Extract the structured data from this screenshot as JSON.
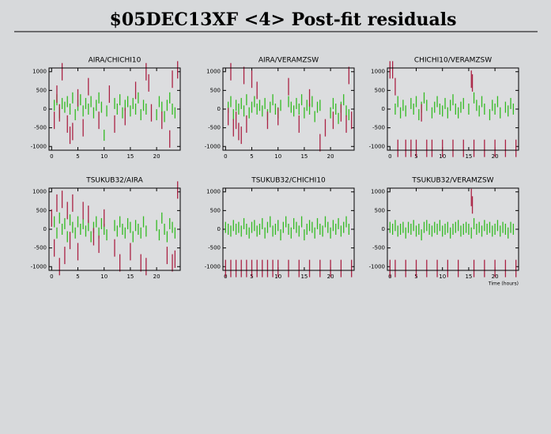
{
  "title": "$05DEC13XF <4> Post-fit residuals",
  "chart_data": [
    {
      "type": "scatter",
      "title": "AIRA/CHICHI10",
      "xlim": [
        -0.5,
        24.5
      ],
      "ylim": [
        -1100,
        1100
      ],
      "xticks": [
        0,
        5,
        10,
        15,
        20
      ],
      "yticks": [
        -1000,
        -500,
        0,
        500,
        1000
      ],
      "series": [
        {
          "color": "#33bb22",
          "x": [
            0.5,
            1,
            1.5,
            2,
            2.5,
            3,
            3.5,
            4,
            4.5,
            5,
            5.5,
            6,
            6.5,
            7,
            7.5,
            8,
            8.5,
            9,
            9.5,
            10,
            10.5,
            12,
            12.5,
            13,
            13.5,
            14,
            14.5,
            15,
            15.5,
            16,
            16.5,
            17,
            17.5,
            18,
            20,
            20.5,
            21,
            21.5,
            22,
            22.5,
            23,
            23.5
          ],
          "values": [
            100,
            250,
            -100,
            150,
            50,
            200,
            0,
            300,
            -150,
            100,
            250,
            -50,
            150,
            0,
            200,
            -100,
            100,
            300,
            50,
            -700,
            -50,
            150,
            0,
            250,
            -100,
            100,
            200,
            -50,
            150,
            0,
            300,
            -150,
            100,
            0,
            -150,
            200,
            50,
            -200,
            100,
            300,
            0,
            -100
          ]
        },
        {
          "color": "#aa2244",
          "x": [
            0.5,
            1,
            1.5,
            2,
            3,
            3.5,
            4,
            5,
            6,
            7,
            9,
            11,
            12,
            14,
            16,
            18,
            18.5,
            19,
            21,
            22.5,
            23,
            24
          ],
          "values": [
            -300,
            400,
            -100,
            1000,
            -400,
            -700,
            -600,
            300,
            -500,
            600,
            -300,
            400,
            -400,
            -200,
            500,
            1000,
            700,
            -100,
            -300,
            -800,
            800,
            1050
          ]
        }
      ]
    },
    {
      "type": "scatter",
      "title": "AIRA/VERAMZSW",
      "xlim": [
        -0.5,
        24.5
      ],
      "ylim": [
        -1100,
        1100
      ],
      "xticks": [
        0,
        5,
        10,
        15,
        20
      ],
      "yticks": [
        -1000,
        -500,
        0,
        500,
        1000
      ],
      "series": [
        {
          "color": "#33bb22",
          "x": [
            0.5,
            1,
            1.5,
            2,
            2.5,
            3,
            3.5,
            4,
            4.5,
            5,
            5.5,
            6,
            6.5,
            7,
            7.5,
            8,
            8.5,
            9,
            9.5,
            10,
            10.5,
            12,
            12.5,
            13,
            13.5,
            14,
            14.5,
            15,
            15.5,
            16,
            16.5,
            17,
            17.5,
            18,
            20,
            20.5,
            21,
            21.5,
            22,
            22.5,
            23,
            23.5
          ],
          "values": [
            50,
            200,
            -150,
            100,
            0,
            150,
            -50,
            250,
            -100,
            50,
            200,
            0,
            100,
            -50,
            150,
            -150,
            50,
            250,
            0,
            -100,
            100,
            200,
            50,
            -50,
            150,
            0,
            250,
            -100,
            100,
            0,
            200,
            -200,
            50,
            100,
            -100,
            150,
            0,
            -250,
            50,
            250,
            -50,
            -150
          ]
        },
        {
          "color": "#aa2244",
          "x": [
            0.5,
            1,
            1.5,
            2,
            2.5,
            3,
            3.5,
            4,
            5,
            6,
            8,
            10,
            12,
            14,
            16,
            18,
            19,
            20.5,
            22,
            23,
            23.5,
            24
          ],
          "values": [
            -200,
            1000,
            -500,
            -300,
            -600,
            -700,
            900,
            -400,
            800,
            500,
            -300,
            -200,
            600,
            -400,
            300,
            -900,
            -500,
            -300,
            -100,
            -400,
            900,
            -300
          ]
        }
      ]
    },
    {
      "type": "scatter",
      "title": "CHICHI10/VERAMZSW",
      "xlim": [
        -0.5,
        24.5
      ],
      "ylim": [
        -1100,
        1100
      ],
      "xticks": [
        0,
        5,
        10,
        15,
        20
      ],
      "yticks": [
        -1000,
        -500,
        0,
        500,
        1000
      ],
      "series": [
        {
          "color": "#33bb22",
          "x": [
            1,
            1.5,
            2,
            2.5,
            3,
            4,
            4.5,
            5,
            5.5,
            6,
            6.5,
            7,
            8,
            8.5,
            9,
            9.5,
            10,
            10.5,
            11,
            11.5,
            12,
            12.5,
            13,
            13.5,
            14,
            15,
            16,
            16.5,
            17,
            17.5,
            18,
            19,
            19.5,
            20,
            20.5,
            21,
            22,
            22.5,
            23,
            23.5
          ],
          "values": [
            0,
            200,
            -100,
            100,
            -50,
            150,
            0,
            200,
            -150,
            50,
            300,
            100,
            -100,
            50,
            200,
            0,
            -50,
            150,
            -100,
            100,
            250,
            0,
            -100,
            50,
            150,
            0,
            300,
            100,
            -50,
            200,
            0,
            -150,
            100,
            0,
            200,
            -100,
            50,
            -50,
            150,
            0
          ]
        },
        {
          "color": "#aa2244",
          "x": [
            0,
            0.5,
            1,
            1.5,
            3,
            4,
            5,
            6,
            7,
            8,
            10,
            12,
            14,
            15.5,
            15.7,
            16,
            18,
            20,
            22,
            24
          ],
          "values": [
            1050,
            1050,
            600,
            -1050,
            -1050,
            -1050,
            -1050,
            -100,
            -1050,
            -1050,
            -1050,
            -1050,
            -1050,
            800,
            700,
            -1050,
            -1050,
            -1050,
            -1050,
            -1050
          ]
        }
      ]
    },
    {
      "type": "scatter",
      "title": "TSUKUB32/AIRA",
      "xlim": [
        -0.5,
        24.5
      ],
      "ylim": [
        -1100,
        1100
      ],
      "xticks": [
        0,
        5,
        10,
        15,
        20
      ],
      "yticks": [
        -1000,
        -500,
        0,
        500,
        1000
      ],
      "series": [
        {
          "color": "#33bb22",
          "x": [
            0.5,
            1,
            1.5,
            2,
            2.5,
            3,
            3.5,
            4,
            4.5,
            5,
            5.5,
            6,
            6.5,
            7,
            7.5,
            8,
            8.5,
            9,
            9.5,
            10,
            10.5,
            12,
            12.5,
            13,
            13.5,
            14,
            14.5,
            15,
            15.5,
            16,
            16.5,
            17,
            17.5,
            18,
            20,
            20.5,
            21,
            21.5,
            22,
            22.5,
            23,
            23.5
          ],
          "values": [
            200,
            -100,
            300,
            0,
            150,
            -200,
            250,
            50,
            -100,
            200,
            0,
            150,
            -50,
            100,
            -200,
            50,
            200,
            -100,
            150,
            0,
            -150,
            100,
            -50,
            200,
            0,
            -100,
            150,
            50,
            -200,
            100,
            0,
            -100,
            200,
            -50,
            100,
            -150,
            300,
            0,
            -200,
            150,
            50,
            -100
          ]
        },
        {
          "color": "#aa2244",
          "x": [
            0,
            0.5,
            1,
            1.5,
            2,
            2.5,
            3,
            3.5,
            4,
            5,
            6,
            7,
            8,
            9,
            10,
            12,
            13,
            15,
            17,
            18,
            22,
            23,
            23.5,
            24
          ],
          "values": [
            300,
            -500,
            700,
            -1000,
            800,
            -700,
            500,
            -300,
            700,
            -600,
            500,
            400,
            -200,
            -400,
            300,
            -500,
            -900,
            -600,
            -900,
            -1000,
            -700,
            -900,
            -800,
            1050
          ]
        }
      ]
    },
    {
      "type": "scatter",
      "title": "TSUKUB32/CHICHI10",
      "xlim": [
        -0.5,
        24.5
      ],
      "ylim": [
        -1100,
        1100
      ],
      "xticks": [
        0,
        5,
        10,
        15,
        20
      ],
      "yticks": [
        -1000,
        -500,
        0,
        500,
        1000
      ],
      "series": [
        {
          "color": "#33bb22",
          "x": [
            0,
            0.5,
            1,
            1.5,
            2,
            2.5,
            3,
            3.5,
            4,
            4.5,
            5,
            5.5,
            6,
            6.5,
            7,
            7.5,
            8,
            8.5,
            9,
            9.5,
            10,
            10.5,
            11,
            11.5,
            12,
            12.5,
            13,
            13.5,
            14,
            14.5,
            15,
            15.5,
            16,
            16.5,
            17,
            17.5,
            18,
            18.5,
            19,
            19.5,
            20,
            20.5,
            21,
            21.5,
            22,
            22.5,
            23,
            23.5
          ],
          "values": [
            50,
            0,
            -50,
            100,
            0,
            50,
            -50,
            150,
            0,
            -100,
            50,
            100,
            -50,
            0,
            150,
            -100,
            50,
            200,
            -50,
            0,
            100,
            -150,
            50,
            200,
            0,
            -100,
            150,
            50,
            -50,
            200,
            -150,
            0,
            100,
            50,
            -100,
            150,
            0,
            -50,
            200,
            50,
            -100,
            100,
            0,
            150,
            -50,
            50,
            200,
            0
          ]
        },
        {
          "color": "#aa2244",
          "x": [
            0,
            1,
            2,
            3,
            4,
            5,
            6,
            7,
            8,
            9,
            10,
            12,
            14,
            16,
            18,
            20,
            22,
            24
          ],
          "values": [
            -1050,
            -1050,
            -1050,
            -1050,
            -1050,
            -1050,
            -1050,
            -1050,
            -1050,
            -1050,
            -1050,
            -1050,
            -1050,
            -1050,
            -1050,
            -1050,
            -1050,
            -1050
          ]
        }
      ]
    },
    {
      "type": "scatter",
      "title": "TSUKUB32/VERAMZSW",
      "x_label": "Time (hours)",
      "xlim": [
        -0.5,
        24.5
      ],
      "ylim": [
        -1100,
        1100
      ],
      "xticks": [
        0,
        5,
        10,
        15,
        20
      ],
      "yticks": [
        -1000,
        -500,
        0,
        500,
        1000
      ],
      "series": [
        {
          "color": "#33bb22",
          "x": [
            0,
            0.5,
            1,
            1.5,
            2,
            2.5,
            3,
            3.5,
            4,
            4.5,
            5,
            5.5,
            6,
            6.5,
            7,
            7.5,
            8,
            8.5,
            9,
            9.5,
            10,
            10.5,
            11,
            11.5,
            12,
            12.5,
            13,
            13.5,
            14,
            14.5,
            15,
            15.5,
            16,
            16.5,
            17,
            17.5,
            18,
            18.5,
            19,
            19.5,
            20,
            20.5,
            21,
            21.5,
            22,
            22.5,
            23,
            23.5
          ],
          "values": [
            50,
            0,
            100,
            -50,
            0,
            50,
            -100,
            50,
            0,
            100,
            -50,
            0,
            -150,
            50,
            100,
            0,
            -50,
            50,
            0,
            100,
            -50,
            0,
            50,
            -100,
            0,
            50,
            100,
            -50,
            0,
            50,
            0,
            -100,
            150,
            0,
            50,
            -50,
            100,
            0,
            50,
            -50,
            0,
            100,
            -50,
            50,
            0,
            -100,
            50,
            0
          ]
        },
        {
          "color": "#aa2244",
          "x": [
            0,
            1,
            3,
            5,
            7,
            9,
            11,
            13,
            15.5,
            15.7,
            16,
            18,
            20,
            22,
            24
          ],
          "values": [
            -1050,
            -1050,
            -1050,
            -1050,
            -1050,
            -1050,
            -1050,
            -1050,
            850,
            650,
            -1050,
            -1050,
            -1050,
            -1050,
            -1050
          ]
        }
      ]
    }
  ]
}
